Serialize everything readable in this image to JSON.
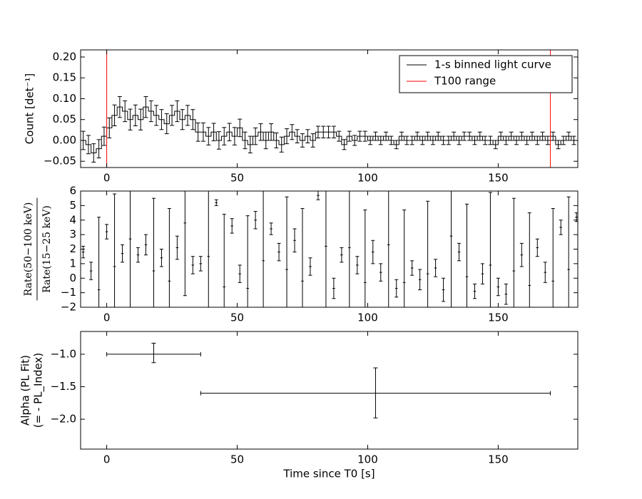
{
  "chart_data": [
    {
      "type": "line",
      "ylabel": "Count [det⁻¹]",
      "xlim": [
        -10,
        180.5
      ],
      "xticks": [
        0,
        50,
        100,
        150
      ],
      "ylim": [
        -0.065,
        0.217
      ],
      "yticks": [
        {
          "value": -0.05,
          "label": "−0.05"
        },
        {
          "value": 0,
          "label": "0.00"
        },
        {
          "value": 0.05,
          "label": "0.05"
        },
        {
          "value": 0.1,
          "label": "0.10"
        },
        {
          "value": 0.15,
          "label": "0.15"
        },
        {
          "value": 0.2,
          "label": "0.20"
        }
      ],
      "legend": "upper right",
      "series": [
        {
          "name": "1-s binned light curve",
          "color": "#000000",
          "x": [
            -9,
            -7,
            -5,
            -3,
            -1,
            1,
            3,
            5,
            7,
            9,
            11,
            13,
            15,
            17,
            19,
            21,
            23,
            25,
            27,
            29,
            31,
            33,
            35,
            37,
            39,
            41,
            43,
            45,
            47,
            49,
            51,
            53,
            55,
            57,
            59,
            61,
            63,
            65,
            67,
            69,
            71,
            73,
            75,
            77,
            79,
            81,
            83,
            85,
            87,
            89,
            91,
            93,
            95,
            97,
            99,
            101,
            103,
            105,
            107,
            109,
            111,
            113,
            115,
            117,
            119,
            121,
            123,
            125,
            127,
            129,
            131,
            133,
            135,
            137,
            139,
            141,
            143,
            145,
            147,
            149,
            151,
            153,
            155,
            157,
            159,
            161,
            163,
            165,
            167,
            169,
            171,
            173,
            175,
            177,
            179
          ],
          "values": [
            0.0,
            -0.01,
            -0.03,
            -0.02,
            0.01,
            0.03,
            0.06,
            0.08,
            0.07,
            0.05,
            0.06,
            0.05,
            0.08,
            0.07,
            0.06,
            0.05,
            0.04,
            0.06,
            0.07,
            0.05,
            0.06,
            0.05,
            0.02,
            0.02,
            0.01,
            0.02,
            0.0,
            0.01,
            0.02,
            0.01,
            0.03,
            0.0,
            -0.01,
            0.01,
            0.02,
            0.0,
            0.02,
            0.0,
            -0.01,
            0.01,
            0.02,
            0.01,
            0.0,
            0.01,
            0.0,
            0.02,
            0.02,
            0.02,
            0.02,
            0.01,
            -0.01,
            0.01,
            0.0,
            0.01,
            0.01,
            0.0,
            0.01,
            0.0,
            0.01,
            0.0,
            -0.01,
            0.01,
            0.0,
            0.0,
            0.01,
            0.0,
            0.01,
            0.0,
            0.01,
            0.0,
            0.0,
            0.01,
            0.0,
            0.01,
            0.01,
            0.0,
            0.01,
            0.0,
            0.0,
            -0.01,
            0.01,
            0.0,
            0.01,
            0.0,
            0.01,
            0.0,
            0.01,
            0.0,
            0.01,
            0.0,
            0.01,
            -0.01,
            0.0,
            0.01,
            0.0
          ],
          "errors": [
            0.022,
            0.022,
            0.022,
            0.022,
            0.022,
            0.024,
            0.025,
            0.025,
            0.025,
            0.025,
            0.025,
            0.025,
            0.025,
            0.025,
            0.024,
            0.024,
            0.024,
            0.024,
            0.025,
            0.024,
            0.024,
            0.024,
            0.022,
            0.022,
            0.021,
            0.021,
            0.021,
            0.021,
            0.021,
            0.021,
            0.021,
            0.02,
            0.02,
            0.02,
            0.02,
            0.02,
            0.02,
            0.018,
            0.018,
            0.018,
            0.018,
            0.016,
            0.016,
            0.016,
            0.016,
            0.014,
            0.014,
            0.014,
            0.014,
            0.012,
            0.012,
            0.012,
            0.012,
            0.012,
            0.012,
            0.01,
            0.01,
            0.01,
            0.01,
            0.01,
            0.01,
            0.01,
            0.01,
            0.01,
            0.01,
            0.01,
            0.01,
            0.01,
            0.01,
            0.01,
            0.01,
            0.01,
            0.01,
            0.01,
            0.01,
            0.01,
            0.01,
            0.01,
            0.01,
            0.01,
            0.01,
            0.01,
            0.01,
            0.01,
            0.01,
            0.01,
            0.01,
            0.01,
            0.01,
            0.01,
            0.01,
            0.01,
            0.01,
            0.01,
            0.01
          ]
        },
        {
          "name": "T100 range",
          "color": "#ff0000",
          "x": [
            0,
            170
          ]
        }
      ]
    },
    {
      "type": "scatter",
      "ylabel": [
        "Rate(50−100 keV)",
        "Rate(15−25 keV)"
      ],
      "xlim": [
        -10,
        180.5
      ],
      "xticks": [
        0,
        50,
        100,
        150
      ],
      "ylim": [
        -2,
        6
      ],
      "yticks": [
        {
          "value": -2,
          "label": "−2"
        },
        {
          "value": -1,
          "label": "−1"
        },
        0,
        1,
        2,
        3,
        4,
        5,
        6
      ],
      "series": [
        {
          "color": "#000000",
          "x": [
            -9,
            -6,
            -3,
            0,
            3,
            6,
            9,
            12,
            15,
            18,
            21,
            24,
            27,
            30,
            33,
            36,
            39,
            42,
            45,
            48,
            51,
            54,
            57,
            60,
            63,
            66,
            69,
            72,
            75,
            78,
            81,
            84,
            87,
            90,
            93,
            96,
            99,
            102,
            105,
            108,
            111,
            114,
            117,
            120,
            123,
            126,
            129,
            132,
            135,
            138,
            141,
            144,
            147,
            150,
            153,
            156,
            159,
            162,
            165,
            168,
            171,
            174,
            177,
            180
          ],
          "values": [
            1.8,
            0.5,
            -0.8,
            3.2,
            0.8,
            1.7,
            2.7,
            1.6,
            2.3,
            0.5,
            1.4,
            -0.2,
            2.1,
            3.8,
            0.9,
            1.0,
            1.5,
            5.2,
            -0.6,
            3.6,
            0.3,
            -0.7,
            4.0,
            1.2,
            3.4,
            1.8,
            0.6,
            2.6,
            -0.2,
            0.8,
            5.7,
            2.2,
            -0.7,
            1.6,
            2.1,
            0.9,
            -0.3,
            1.8,
            0.4,
            2.3,
            -0.7,
            -0.3,
            0.7,
            -0.1,
            0.3,
            0.7,
            -0.8,
            2.9,
            1.8,
            0.1,
            -0.9,
            0.3,
            0.9,
            -0.6,
            -1.1,
            0.5,
            1.6,
            -0.5,
            2.1,
            0.4,
            -0.2,
            3.5,
            0.6,
            4.2
          ],
          "errors": [
            0.4,
            0.6,
            5,
            0.5,
            5,
            0.6,
            5,
            0.5,
            0.7,
            5,
            0.6,
            5,
            0.8,
            5,
            0.6,
            0.5,
            5,
            0.2,
            5,
            0.5,
            0.6,
            5,
            0.6,
            5,
            0.4,
            0.6,
            5,
            0.8,
            5,
            0.6,
            0.3,
            5,
            0.7,
            0.5,
            5,
            0.6,
            5,
            0.8,
            0.6,
            5,
            0.6,
            5,
            0.5,
            0.7,
            5,
            0.6,
            0.8,
            5,
            0.6,
            5,
            0.5,
            0.7,
            5,
            0.6,
            0.7,
            5,
            0.8,
            5,
            0.6,
            0.7,
            5,
            0.5,
            5,
            0.3
          ]
        }
      ]
    },
    {
      "type": "scatter",
      "ylabel": [
        "Alpha (PL Fit)",
        "(= - PL_Index)"
      ],
      "xlabel": "Time since T0 [s]",
      "xlim": [
        -10,
        180.5
      ],
      "xticks": [
        0,
        50,
        100,
        150
      ],
      "ylim": [
        -2.46,
        -0.65
      ],
      "yticks": [
        {
          "value": -2,
          "label": "−2.0"
        },
        {
          "value": -1.5,
          "label": "−1.5"
        },
        {
          "value": -1,
          "label": "−1.0"
        }
      ],
      "series": [
        {
          "color": "#000000",
          "x": [
            18,
            103
          ],
          "x_lo": [
            0,
            36
          ],
          "x_hi": [
            36,
            170
          ],
          "values": [
            -1.0,
            -1.6
          ],
          "y_lo": [
            -1.13,
            -1.98
          ],
          "y_hi": [
            -0.83,
            -1.21
          ]
        }
      ]
    }
  ]
}
